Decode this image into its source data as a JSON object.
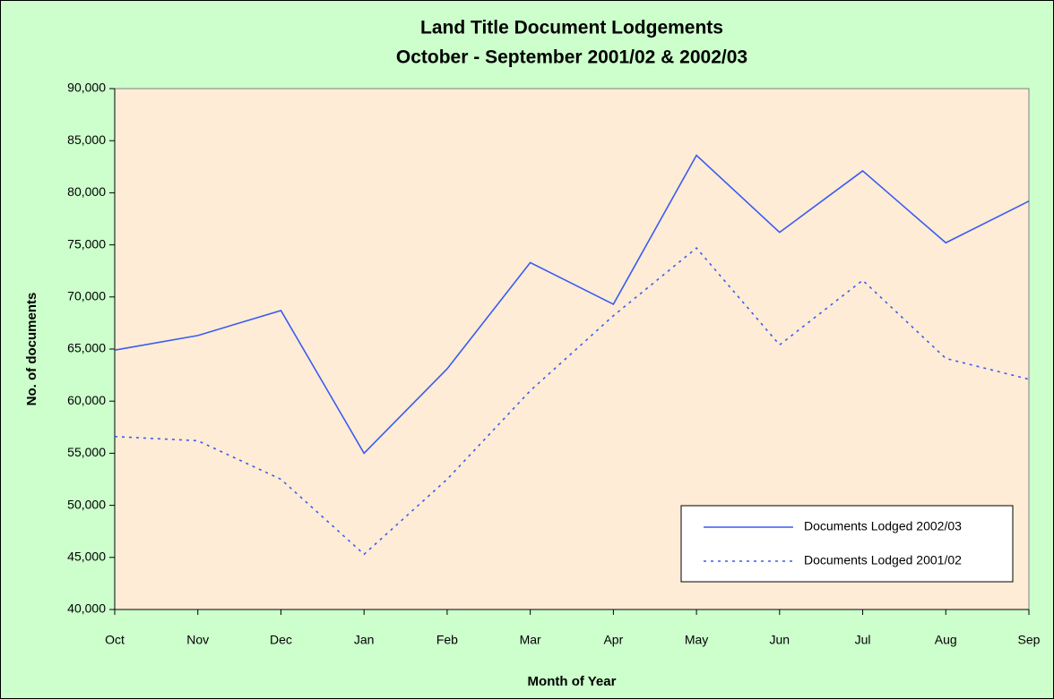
{
  "chart_data": {
    "type": "line",
    "title": "Land Title Document Lodgements",
    "subtitle": "October - September 2001/02 & 2002/03",
    "x_label": "Month of Year",
    "y_label": "No. of documents",
    "categories": [
      "Oct",
      "Nov",
      "Dec",
      "Jan",
      "Feb",
      "Mar",
      "Apr",
      "May",
      "Jun",
      "Jul",
      "Aug",
      "Sep"
    ],
    "series": [
      {
        "name": "Documents Lodged 2002/03",
        "color": "#3a5cf0",
        "dash": "solid",
        "values": [
          64900,
          66300,
          68700,
          55000,
          63100,
          73300,
          69300,
          83600,
          76200,
          82100,
          75200,
          79200
        ]
      },
      {
        "name": "Documents Lodged 2001/02",
        "color": "#3a5cf0",
        "dash": "dotted",
        "values": [
          56600,
          56200,
          52500,
          45300,
          52500,
          61000,
          68200,
          74700,
          65400,
          71600,
          64100,
          62100
        ]
      }
    ],
    "ylim": [
      40000,
      90000
    ],
    "yticks": [
      {
        "value": 40000,
        "label": "40,000"
      },
      {
        "value": 45000,
        "label": "45,000"
      },
      {
        "value": 50000,
        "label": "50,000"
      },
      {
        "value": 55000,
        "label": "55,000"
      },
      {
        "value": 60000,
        "label": "60,000"
      },
      {
        "value": 65000,
        "label": "65,000"
      },
      {
        "value": 70000,
        "label": "70,000"
      },
      {
        "value": 75000,
        "label": "75,000"
      },
      {
        "value": 80000,
        "label": "80,000"
      },
      {
        "value": 85000,
        "label": "85,000"
      },
      {
        "value": 90000,
        "label": "90,000"
      }
    ],
    "grid": false,
    "legend": "lower right"
  }
}
